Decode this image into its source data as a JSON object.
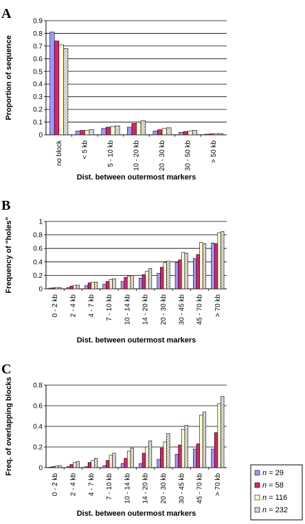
{
  "colors": {
    "s0": "#9999ff",
    "s1": "#e0206f",
    "s2": "#ffffcc",
    "s3": "#c8c8c8"
  },
  "legend": [
    {
      "prefix": "n",
      "text": " = 29"
    },
    {
      "prefix": "n",
      "text": " = 58"
    },
    {
      "prefix": "n",
      "text": " = 116"
    },
    {
      "prefix": "n",
      "text": " = 232"
    }
  ],
  "chart_data": [
    {
      "panel": "A",
      "type": "bar",
      "xlabel": "Dist. between outermost markers",
      "ylabel": "Proportion of sequence",
      "ylim": [
        0,
        0.9
      ],
      "yticks": [
        "0",
        "0.1",
        "0.2",
        "0.3",
        "0.4",
        "0.5",
        "0.6",
        "0.7",
        "0.8",
        "0.9"
      ],
      "categories": [
        "no block",
        "< 5 kb",
        "5 - 10 kb",
        "10 - 20 kb",
        "20 - 30 kb",
        "30 - 50 kb",
        "> 50 kb"
      ],
      "series": [
        {
          "name": "n = 29",
          "values": [
            0.81,
            0.03,
            0.05,
            0.06,
            0.03,
            0.02,
            0.005
          ]
        },
        {
          "name": "n = 58",
          "values": [
            0.74,
            0.035,
            0.06,
            0.09,
            0.04,
            0.025,
            0.007
          ]
        },
        {
          "name": "n = 116",
          "values": [
            0.71,
            0.035,
            0.065,
            0.1,
            0.05,
            0.03,
            0.008
          ]
        },
        {
          "name": "n = 232",
          "values": [
            0.68,
            0.04,
            0.07,
            0.11,
            0.055,
            0.035,
            0.01
          ]
        }
      ]
    },
    {
      "panel": "B",
      "type": "bar",
      "xlabel": "Dist. between outermost markers",
      "ylabel": "Frequency of \"holes\"",
      "ylim": [
        0,
        1
      ],
      "yticks": [
        "0",
        "0.2",
        "0.4",
        "0.6",
        "0.8",
        "1"
      ],
      "categories": [
        "0 - 2 kb",
        "2 - 4 kb",
        "4 - 7 kb",
        "7 - 10 kb",
        "10 - 14 kb",
        "14 - 20 kb",
        "20 - 30 kb",
        "30 - 45 kb",
        "45 - 70 kb",
        "> 70 kb"
      ],
      "series": [
        {
          "name": "n = 29",
          "values": [
            0.01,
            0.02,
            0.05,
            0.07,
            0.11,
            0.16,
            0.23,
            0.39,
            0.45,
            0.68
          ]
        },
        {
          "name": "n = 58",
          "values": [
            0.015,
            0.04,
            0.09,
            0.11,
            0.17,
            0.21,
            0.32,
            0.43,
            0.51,
            0.67
          ]
        },
        {
          "name": "n = 116",
          "values": [
            0.02,
            0.05,
            0.1,
            0.14,
            0.19,
            0.26,
            0.39,
            0.54,
            0.69,
            0.83
          ]
        },
        {
          "name": "n = 232",
          "values": [
            0.02,
            0.055,
            0.1,
            0.15,
            0.2,
            0.3,
            0.41,
            0.53,
            0.67,
            0.85
          ]
        }
      ]
    },
    {
      "panel": "C",
      "type": "bar",
      "xlabel": "Dist. between outermost markers",
      "ylabel": "Freq. of overlapping blocks",
      "ylim": [
        0,
        0.8
      ],
      "yticks": [
        "0",
        "0.2",
        "0.4",
        "0.6",
        "0.8"
      ],
      "categories": [
        "0 - 2 kb",
        "2 - 4 kb",
        "4 - 7 kb",
        "7 - 10 kb",
        "10 - 14 kb",
        "14 - 20 kb",
        "20 - 30 kb",
        "30 - 45 kb",
        "45 - 70 kb",
        "> 70 kb"
      ],
      "series": [
        {
          "name": "n = 29",
          "values": [
            0.005,
            0.01,
            0.01,
            0.02,
            0.04,
            0.04,
            0.08,
            0.13,
            0.18,
            0.18
          ]
        },
        {
          "name": "n = 58",
          "values": [
            0.01,
            0.03,
            0.05,
            0.07,
            0.09,
            0.14,
            0.19,
            0.22,
            0.23,
            0.34
          ]
        },
        {
          "name": "n = 116",
          "values": [
            0.015,
            0.05,
            0.07,
            0.12,
            0.16,
            0.2,
            0.25,
            0.37,
            0.51,
            0.62
          ]
        },
        {
          "name": "n = 232",
          "values": [
            0.02,
            0.06,
            0.09,
            0.14,
            0.19,
            0.26,
            0.33,
            0.41,
            0.54,
            0.69
          ]
        }
      ]
    }
  ]
}
